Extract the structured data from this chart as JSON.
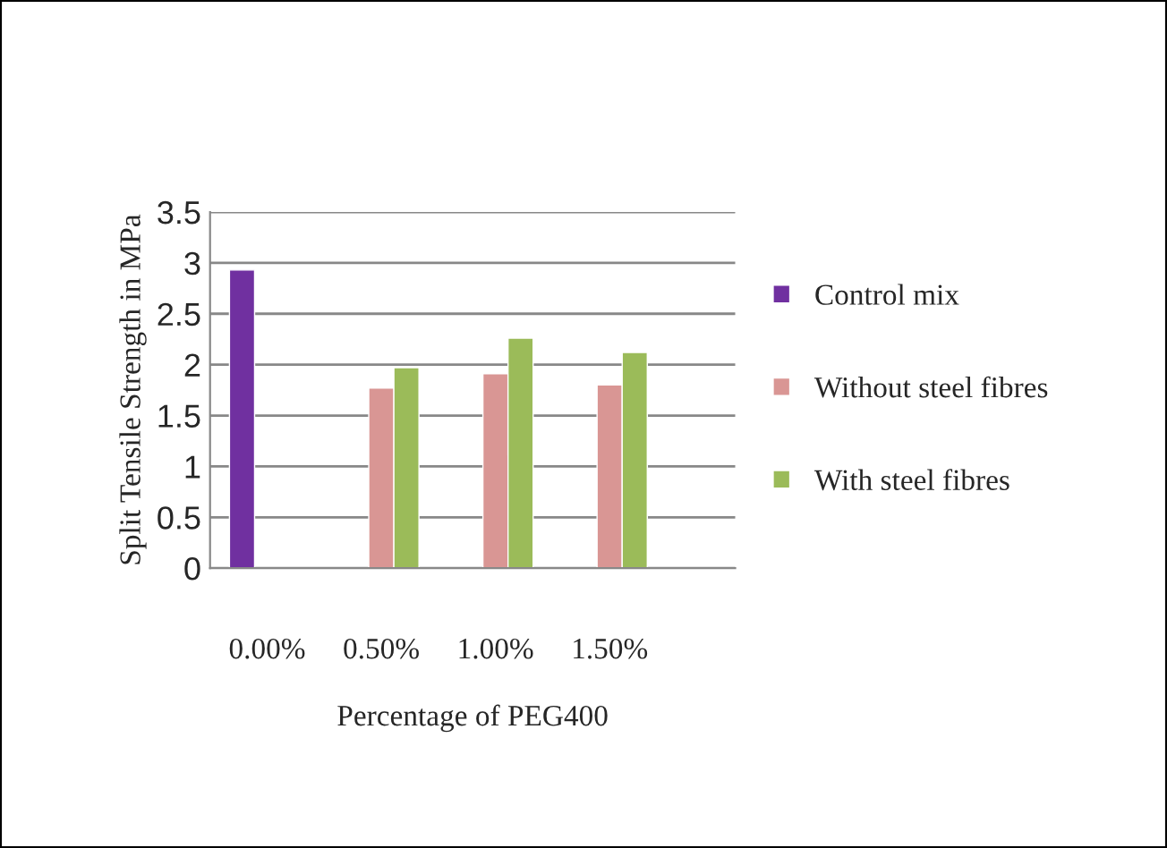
{
  "chart_data": {
    "type": "bar",
    "xlabel": "Percentage of PEG400",
    "ylabel": "Split Tensile Strength in MPa",
    "categories": [
      "0.00%",
      "0.50%",
      "1.00%",
      "1.50%"
    ],
    "series": [
      {
        "name": "Control mix",
        "color": "#7030a0",
        "values": [
          2.93,
          null,
          null,
          null
        ]
      },
      {
        "name": "Without steel fibres",
        "color": "#d99694",
        "values": [
          null,
          1.77,
          1.91,
          1.8
        ]
      },
      {
        "name": "With steel fibres",
        "color": "#9bbb59",
        "values": [
          null,
          1.97,
          2.26,
          2.12
        ]
      }
    ],
    "ylim": [
      0,
      3.5
    ],
    "yticks": [
      0,
      0.5,
      1,
      1.5,
      2,
      2.5,
      3,
      3.5
    ],
    "grid": "y",
    "legend": "right"
  }
}
